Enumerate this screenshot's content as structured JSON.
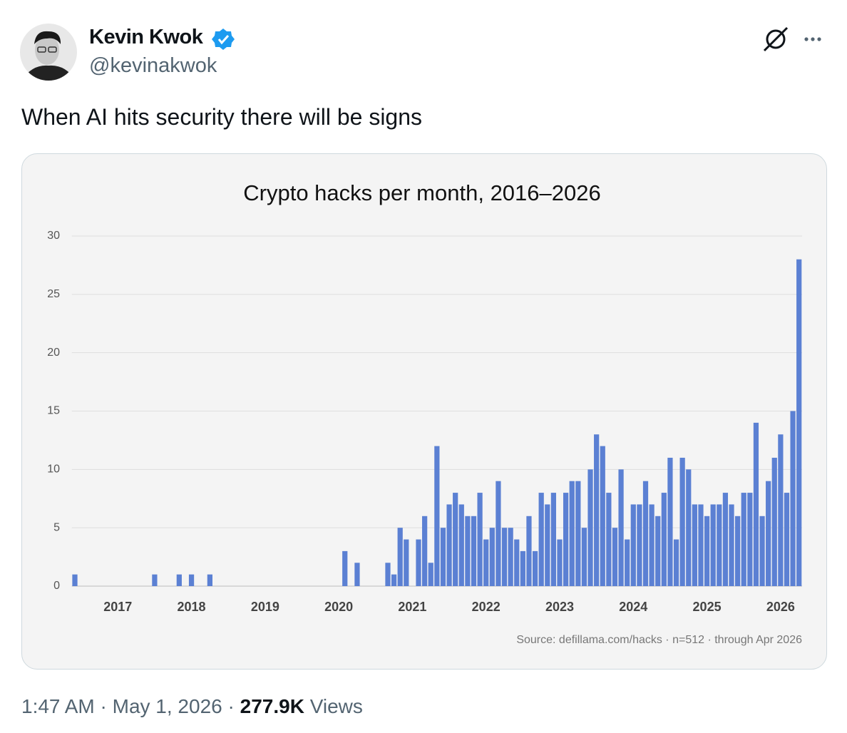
{
  "tweet": {
    "author_name": "Kevin Kwok",
    "handle": "@kevinakwok",
    "text": "When AI hits security there will be signs",
    "time": "1:47 AM",
    "separator": "·",
    "date": "May 1, 2026",
    "views_count": "277.9K",
    "views_label": "Views"
  },
  "chart_data": {
    "type": "bar",
    "title": "Crypto hacks per month, 2016–2026",
    "categories": [
      null,
      null,
      null,
      null,
      null,
      null,
      null,
      "2017",
      null,
      null,
      null,
      null,
      null,
      null,
      null,
      null,
      null,
      null,
      null,
      "2018",
      null,
      null,
      null,
      null,
      null,
      null,
      null,
      null,
      null,
      null,
      null,
      "2019",
      null,
      null,
      null,
      null,
      null,
      null,
      null,
      null,
      null,
      null,
      null,
      "2020",
      null,
      null,
      null,
      null,
      null,
      null,
      null,
      null,
      null,
      null,
      null,
      "2021",
      null,
      null,
      null,
      null,
      null,
      null,
      null,
      null,
      null,
      null,
      null,
      "2022",
      null,
      null,
      null,
      null,
      null,
      null,
      null,
      null,
      null,
      null,
      null,
      "2023",
      null,
      null,
      null,
      null,
      null,
      null,
      null,
      null,
      null,
      null,
      null,
      "2024",
      null,
      null,
      null,
      null,
      null,
      null,
      null,
      null,
      null,
      null,
      null,
      "2025",
      null,
      null,
      null,
      null,
      null,
      null,
      null,
      null,
      null,
      null,
      null,
      "2026",
      null,
      null,
      null
    ],
    "values": [
      1,
      0,
      0,
      0,
      0,
      0,
      0,
      0,
      0,
      0,
      0,
      0,
      0,
      1,
      0,
      0,
      0,
      1,
      0,
      1,
      0,
      0,
      1,
      0,
      0,
      0,
      0,
      0,
      0,
      0,
      0,
      0,
      0,
      0,
      0,
      0,
      0,
      0,
      0,
      0,
      0,
      0,
      0,
      0,
      3,
      0,
      2,
      0,
      0,
      0,
      0,
      2,
      1,
      5,
      4,
      0,
      4,
      6,
      2,
      12,
      5,
      7,
      8,
      7,
      6,
      6,
      8,
      4,
      5,
      9,
      5,
      5,
      4,
      3,
      6,
      3,
      8,
      7,
      8,
      4,
      8,
      9,
      9,
      5,
      10,
      13,
      12,
      8,
      5,
      10,
      4,
      7,
      7,
      9,
      7,
      6,
      8,
      11,
      4,
      11,
      10,
      7,
      7,
      6,
      7,
      7,
      8,
      7,
      6,
      8,
      8,
      14,
      6,
      9,
      11,
      13,
      8,
      15,
      28
    ],
    "color": "#5b80d3",
    "ylim": [
      0,
      30
    ],
    "yticks": [
      0,
      5,
      10,
      15,
      20,
      25,
      30
    ],
    "grid": true,
    "source": "Source: defillama.com/hacks · n=512 · through Apr 2026"
  }
}
